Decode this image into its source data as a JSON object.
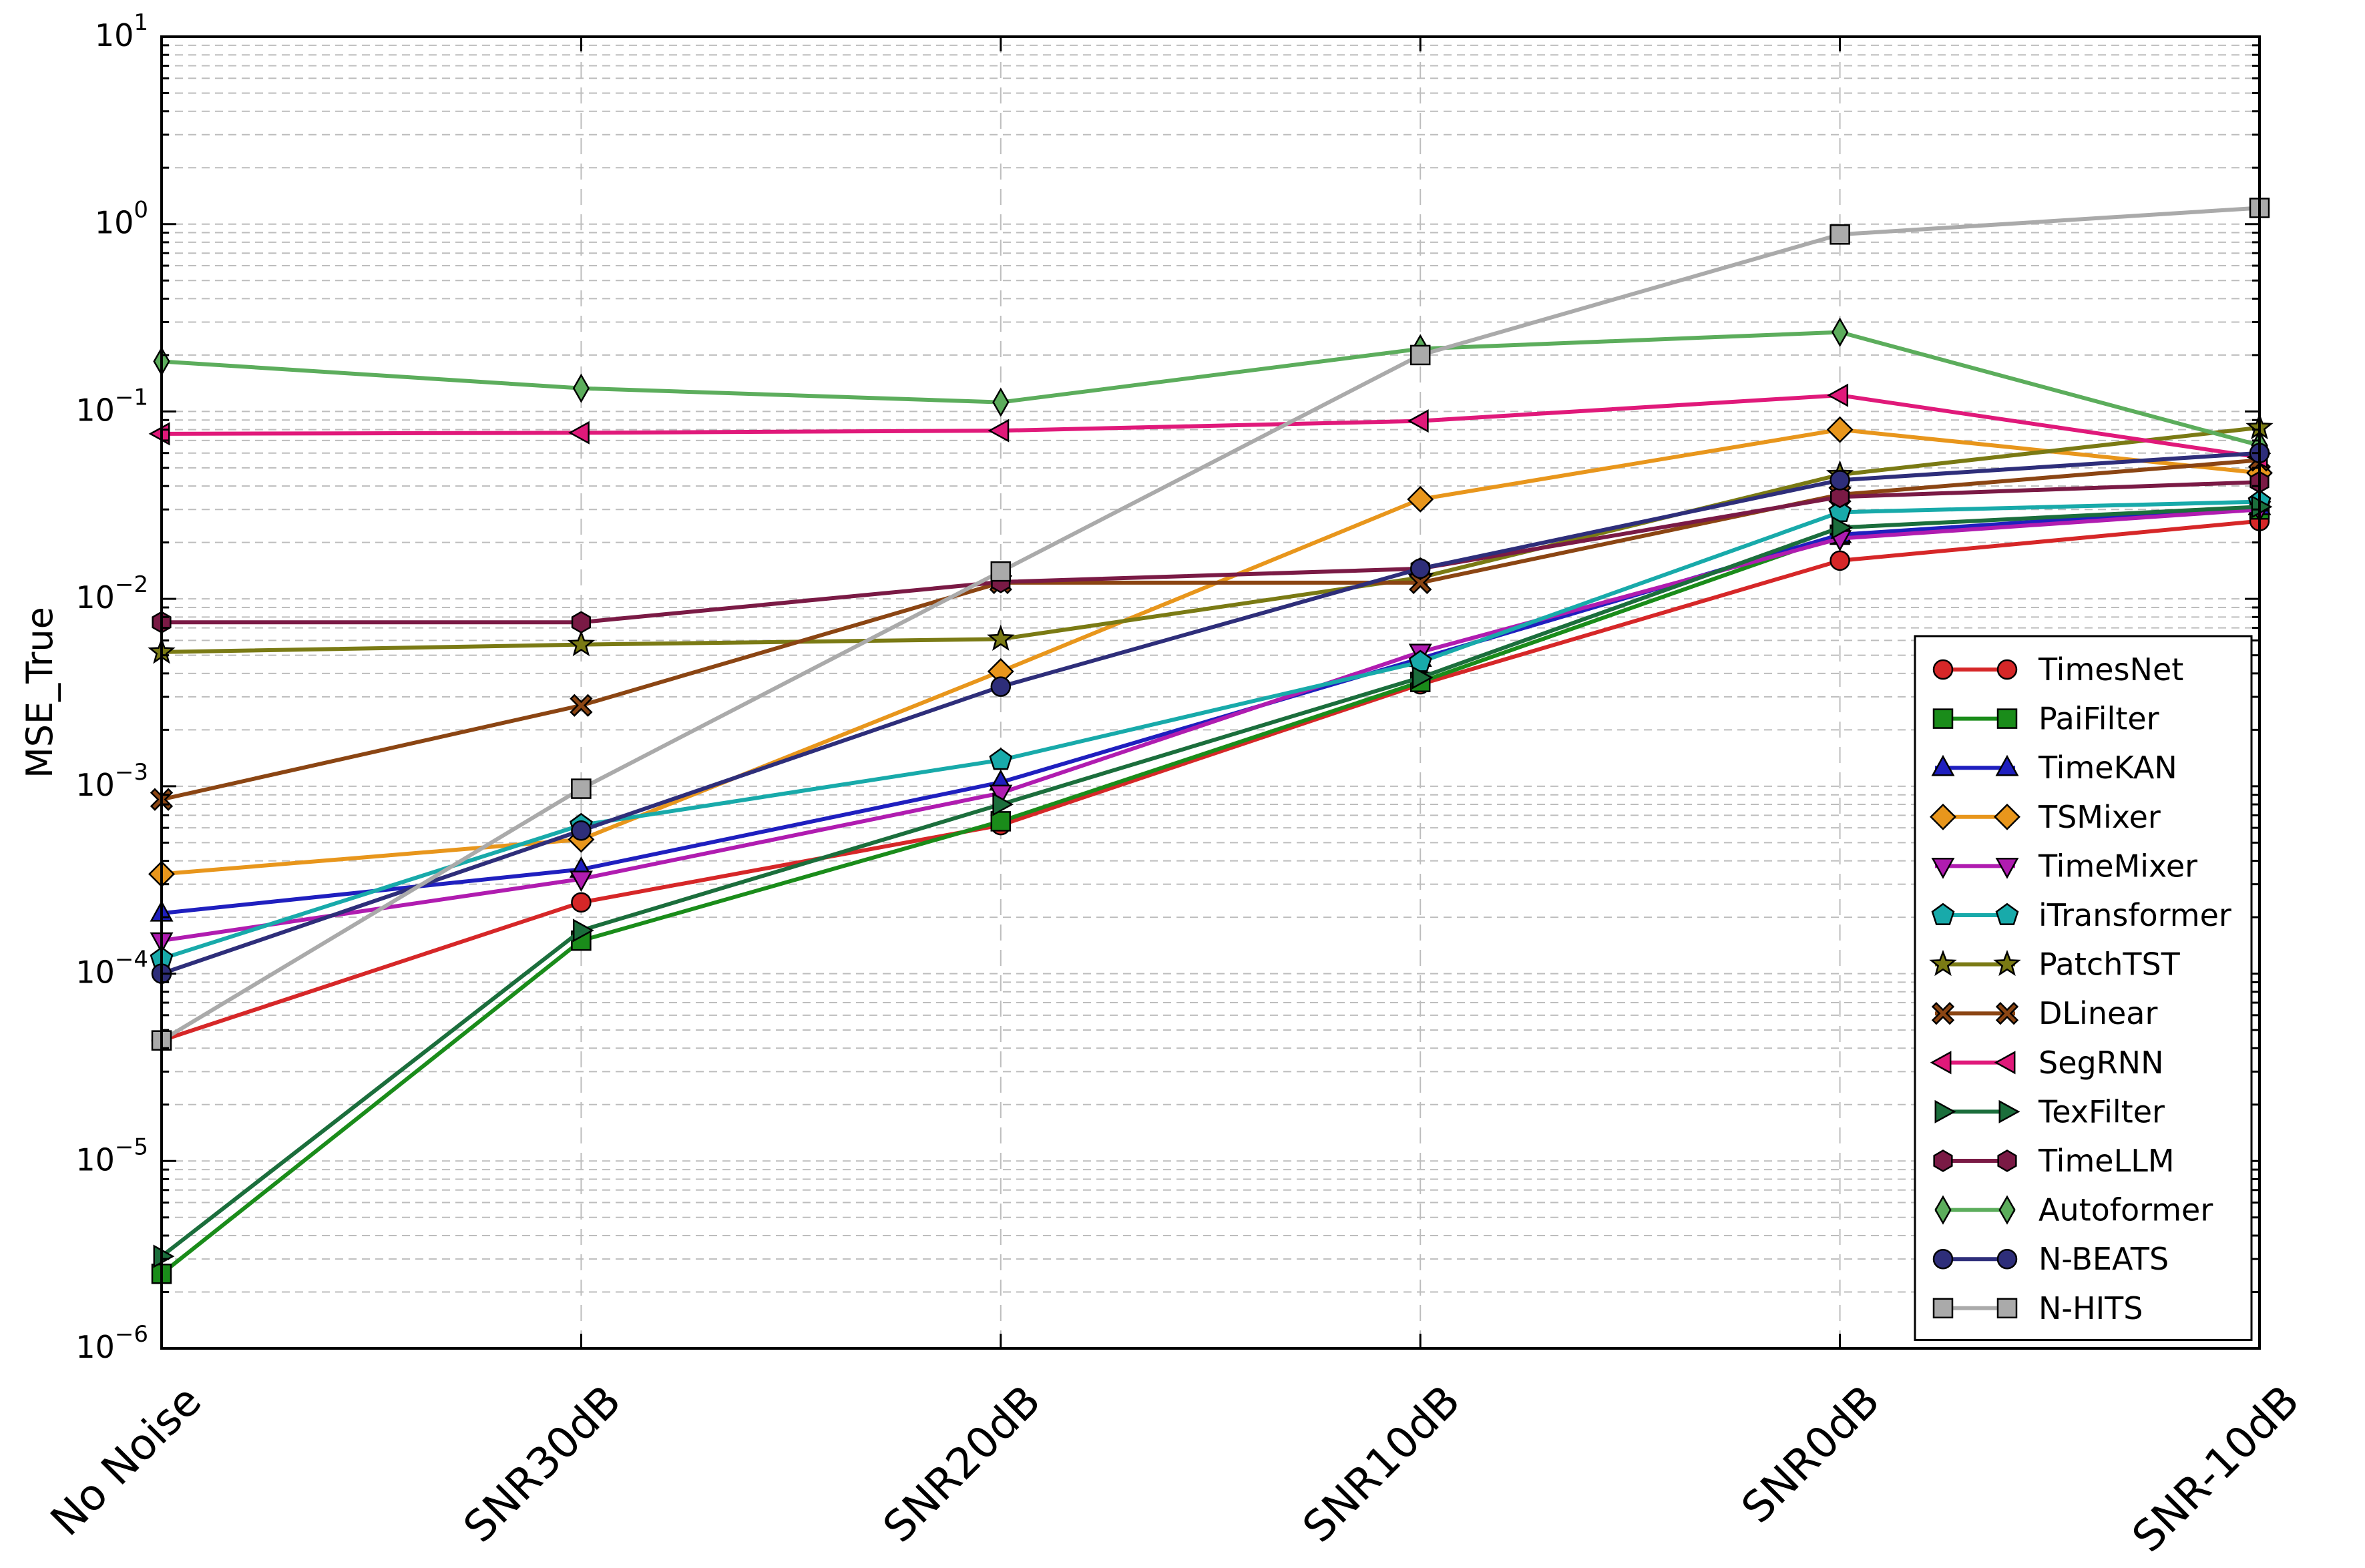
{
  "chart_data": {
    "type": "line",
    "title": "",
    "xlabel": "",
    "ylabel": "MSE_True",
    "yscale": "log",
    "ylim": [
      1e-06,
      10
    ],
    "y_ticks": [
      {
        "value": 1e-06,
        "base": "10",
        "exp": "−6"
      },
      {
        "value": 1e-05,
        "base": "10",
        "exp": "−5"
      },
      {
        "value": 0.0001,
        "base": "10",
        "exp": "−4"
      },
      {
        "value": 0.001,
        "base": "10",
        "exp": "−3"
      },
      {
        "value": 0.01,
        "base": "10",
        "exp": "−2"
      },
      {
        "value": 0.1,
        "base": "10",
        "exp": "−1"
      },
      {
        "value": 1,
        "base": "10",
        "exp": "0"
      },
      {
        "value": 10,
        "base": "10",
        "exp": "1"
      }
    ],
    "categories": [
      "No Noise",
      "SNR30dB",
      "SNR20dB",
      "SNR10dB",
      "SNR0dB",
      "SNR-10dB"
    ],
    "grid": "dashed minor horizontal, dashed vertical at categories",
    "legend_position": "lower-right",
    "series": [
      {
        "name": "TimesNet",
        "color": "#d62728",
        "marker": "circle",
        "values": [
          4.4e-05,
          0.00024,
          0.00062,
          0.0035,
          0.016,
          0.026
        ]
      },
      {
        "name": "PaiFilter",
        "color": "#1a8c1a",
        "marker": "square",
        "values": [
          2.5e-06,
          0.00015,
          0.00065,
          0.0036,
          0.022,
          0.03
        ]
      },
      {
        "name": "TimeKAN",
        "color": "#1f1fbf",
        "marker": "triangle-up",
        "values": [
          0.00021,
          0.00036,
          0.00105,
          0.0048,
          0.022,
          0.031
        ]
      },
      {
        "name": "TSMixer",
        "color": "#e8961c",
        "marker": "diamond",
        "values": [
          0.00034,
          0.00052,
          0.0041,
          0.034,
          0.08,
          0.047
        ]
      },
      {
        "name": "TimeMixer",
        "color": "#b01cb0",
        "marker": "triangle-down",
        "values": [
          0.00015,
          0.00032,
          0.00092,
          0.0052,
          0.021,
          0.03
        ]
      },
      {
        "name": "iTransformer",
        "color": "#18aaaa",
        "marker": "pentagon",
        "values": [
          0.00012,
          0.00062,
          0.00138,
          0.0046,
          0.029,
          0.033
        ]
      },
      {
        "name": "PatchTST",
        "color": "#7a7a14",
        "marker": "star",
        "values": [
          0.0052,
          0.0057,
          0.0061,
          0.013,
          0.046,
          0.082
        ]
      },
      {
        "name": "DLinear",
        "color": "#8b4513",
        "marker": "x",
        "values": [
          0.00085,
          0.0027,
          0.0122,
          0.0122,
          0.036,
          0.055
        ]
      },
      {
        "name": "SegRNN",
        "color": "#e0197a",
        "marker": "triangle-left",
        "values": [
          0.076,
          0.077,
          0.079,
          0.089,
          0.122,
          0.057
        ]
      },
      {
        "name": "TexFilter",
        "color": "#1b6e3c",
        "marker": "triangle-right",
        "values": [
          3.1e-06,
          0.00017,
          0.0008,
          0.0038,
          0.024,
          0.031
        ]
      },
      {
        "name": "TimeLLM",
        "color": "#7a1a45",
        "marker": "hexagon",
        "values": [
          0.0075,
          0.0075,
          0.0123,
          0.0145,
          0.035,
          0.042
        ]
      },
      {
        "name": "Autoformer",
        "color": "#5cad5c",
        "marker": "thin-diamond",
        "values": [
          0.185,
          0.133,
          0.112,
          0.216,
          0.265,
          0.066
        ]
      },
      {
        "name": "N-BEATS",
        "color": "#2e2e7a",
        "marker": "circle",
        "values": [
          0.0001,
          0.00058,
          0.0034,
          0.0145,
          0.043,
          0.06
        ]
      },
      {
        "name": "N-HITS",
        "color": "#aaaaaa",
        "marker": "square",
        "values": [
          4.4e-05,
          0.00097,
          0.014,
          0.2,
          0.88,
          1.22
        ]
      }
    ]
  }
}
